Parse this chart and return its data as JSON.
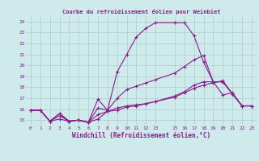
{
  "title": "Courbe du refroidissement éolien pour Weinbiet",
  "xlabel": "Windchill (Refroidissement éolien,°C)",
  "background_color": "#ceeaea",
  "line_color": "#8b1a8b",
  "grid_color": "#aacccc",
  "xlim": [
    -0.5,
    23.5
  ],
  "ylim": [
    14.5,
    24.5
  ],
  "yticks": [
    15,
    16,
    17,
    18,
    19,
    20,
    21,
    22,
    23,
    24
  ],
  "xticks": [
    0,
    1,
    2,
    3,
    4,
    5,
    6,
    7,
    8,
    9,
    10,
    11,
    12,
    13,
    15,
    16,
    17,
    18,
    19,
    20,
    21,
    22,
    23
  ],
  "x": [
    0,
    1,
    2,
    3,
    4,
    5,
    6,
    7,
    8,
    9,
    10,
    11,
    12,
    13,
    15,
    16,
    17,
    18,
    19,
    20,
    21,
    22,
    23
  ],
  "line1": [
    15.9,
    15.9,
    14.9,
    15.6,
    14.9,
    15.0,
    14.8,
    16.9,
    15.9,
    19.4,
    21.0,
    22.6,
    23.4,
    23.9,
    23.9,
    23.9,
    22.7,
    20.3,
    18.5,
    17.3,
    17.5,
    16.3,
    16.3
  ],
  "line2": [
    15.9,
    15.9,
    14.9,
    15.1,
    14.9,
    15.0,
    14.8,
    15.1,
    15.8,
    15.9,
    16.2,
    16.3,
    16.5,
    16.7,
    17.1,
    17.5,
    17.9,
    18.2,
    18.4,
    18.6,
    17.4,
    16.3,
    16.3
  ],
  "line3": [
    15.9,
    15.9,
    14.9,
    15.4,
    14.9,
    15.0,
    14.8,
    15.5,
    15.8,
    16.1,
    16.3,
    16.4,
    16.5,
    16.7,
    17.2,
    17.6,
    18.2,
    18.5,
    18.5,
    18.5,
    17.4,
    16.3,
    16.3
  ],
  "line4": [
    15.9,
    15.9,
    14.9,
    15.6,
    14.9,
    15.0,
    14.8,
    16.1,
    15.9,
    17.0,
    17.8,
    18.1,
    18.4,
    18.7,
    19.3,
    19.9,
    20.5,
    20.9,
    18.5,
    18.5,
    17.4,
    16.3,
    16.3
  ]
}
